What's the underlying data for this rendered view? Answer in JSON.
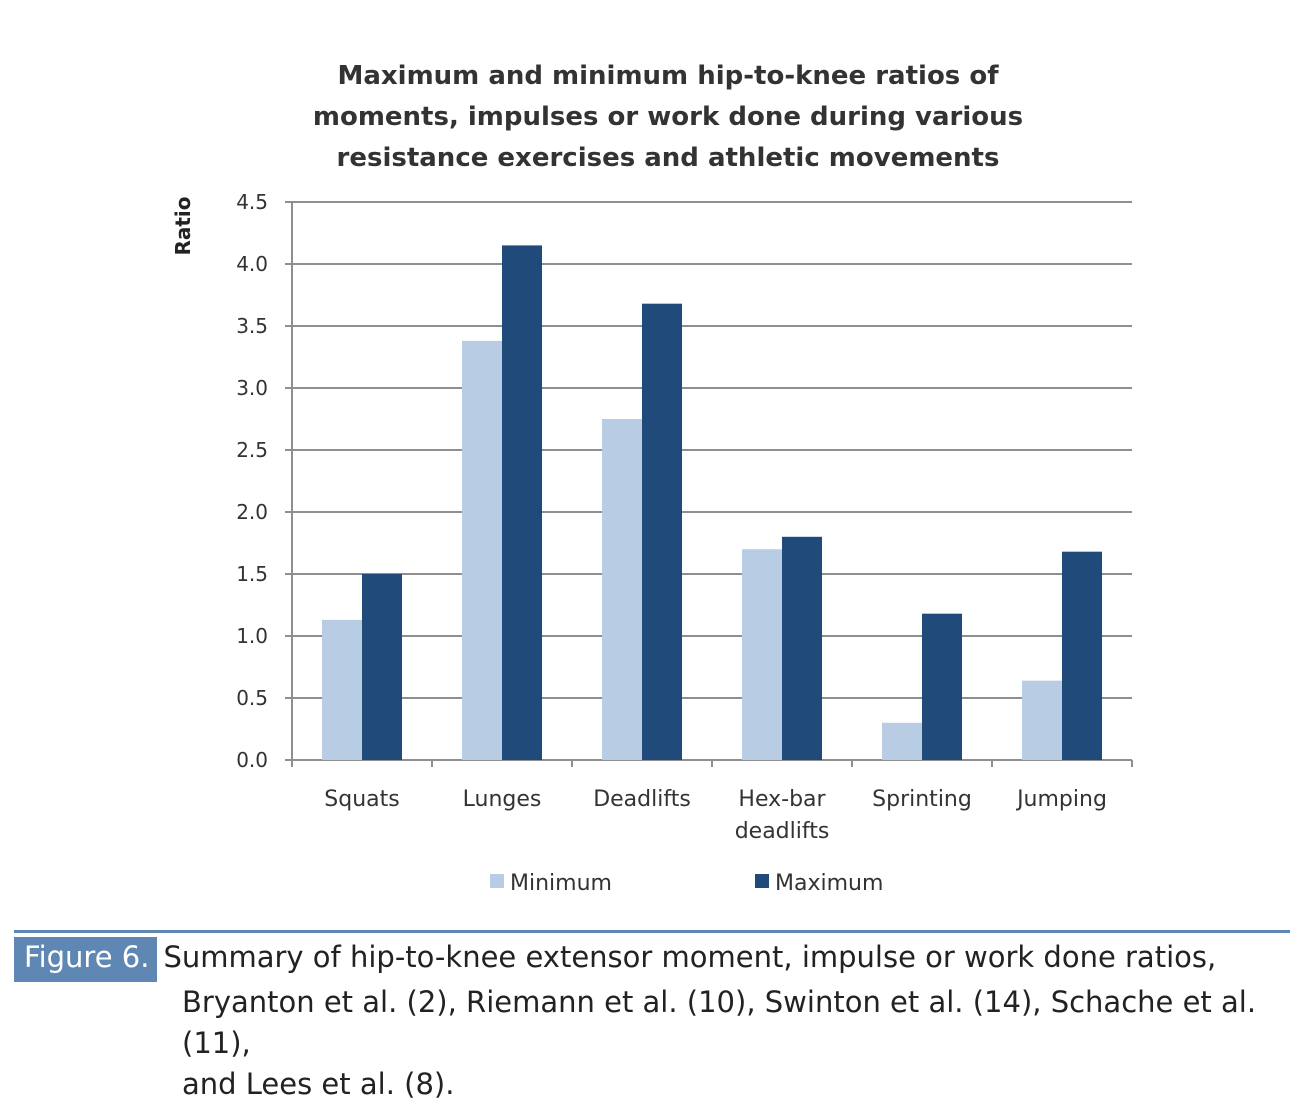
{
  "chart_data": {
    "type": "bar",
    "title_lines": [
      "Maximum and minimum hip-to-knee ratios of",
      "moments, impulses or work done during various",
      "resistance exercises and athletic movements"
    ],
    "ylabel": "Ratio",
    "xlabel": "",
    "ylim": [
      0,
      4.5
    ],
    "yticks": [
      "0.0",
      "0.5",
      "1.0",
      "1.5",
      "2.0",
      "2.5",
      "3.0",
      "3.5",
      "4.0",
      "4.5"
    ],
    "grid": true,
    "legend_position": "bottom",
    "categories": [
      [
        "Squats"
      ],
      [
        "Lunges"
      ],
      [
        "Deadlifts"
      ],
      [
        "Hex-bar",
        "deadlifts"
      ],
      [
        "Sprinting"
      ],
      [
        "Jumping"
      ]
    ],
    "series": [
      {
        "name": "Minimum",
        "color": "#b8cde3",
        "values": [
          1.13,
          3.38,
          2.75,
          1.7,
          0.3,
          0.64
        ]
      },
      {
        "name": "Maximum",
        "color": "#204a79",
        "values": [
          1.5,
          4.15,
          3.68,
          1.8,
          1.18,
          1.68
        ]
      }
    ]
  },
  "caption": {
    "label": "Figure 6.",
    "line1": "Summary of hip-to-knee extensor moment, impulse or work done ratios,",
    "line2": "Bryanton et al. (2), Riemann et al. (10), Swinton et al. (14), Schache et al. (11),",
    "line3": "and Lees et al. (8)."
  }
}
